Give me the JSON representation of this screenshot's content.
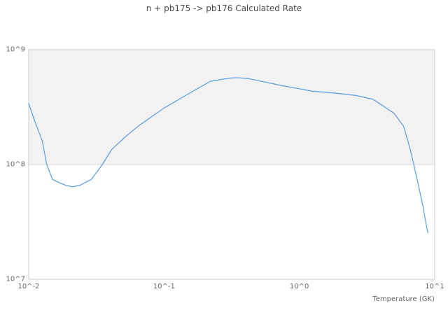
{
  "chart_data": {
    "type": "line",
    "title": "n + pb175 -> pb176 Calculated Rate",
    "xlabel": "Temperature (GK)",
    "ylabel": "",
    "x_scale": "log",
    "y_scale": "log",
    "xlim": [
      0.01,
      10
    ],
    "ylim": [
      10000000,
      1000000000
    ],
    "x_tick_values": [
      0.01,
      0.1,
      1,
      10
    ],
    "x_tick_labels": [
      "10^-2",
      "10^-1",
      "10^0",
      "10^1"
    ],
    "y_tick_values": [
      10000000,
      100000000,
      1000000000
    ],
    "y_tick_labels": [
      "10^7",
      "10^8",
      "10^9"
    ],
    "grid": "horizontal-only",
    "legend": "none",
    "plot_bands": [
      {
        "from": 100000000,
        "to": 1000000000,
        "color": "#f2f2f2"
      }
    ],
    "series": [
      {
        "name": "Calculated Rate",
        "color": "#64a2e2",
        "points": [
          [
            0.01,
            340000000
          ],
          [
            0.011,
            245000000
          ],
          [
            0.0126,
            160000000
          ],
          [
            0.0136,
            100000000
          ],
          [
            0.015,
            74000000
          ],
          [
            0.017,
            69000000
          ],
          [
            0.019,
            65500000
          ],
          [
            0.021,
            64000000
          ],
          [
            0.024,
            66000000
          ],
          [
            0.029,
            74000000
          ],
          [
            0.035,
            100000000
          ],
          [
            0.041,
            135000000
          ],
          [
            0.052,
            175000000
          ],
          [
            0.066,
            220000000
          ],
          [
            0.1,
            310000000
          ],
          [
            0.15,
            410000000
          ],
          [
            0.22,
            530000000
          ],
          [
            0.3,
            565000000
          ],
          [
            0.35,
            570000000
          ],
          [
            0.42,
            560000000
          ],
          [
            0.57,
            520000000
          ],
          [
            0.72,
            490000000
          ],
          [
            0.92,
            465000000
          ],
          [
            1.25,
            435000000
          ],
          [
            1.8,
            420000000
          ],
          [
            2.6,
            400000000
          ],
          [
            3.5,
            370000000
          ],
          [
            5.0,
            280000000
          ],
          [
            5.9,
            215000000
          ],
          [
            6.6,
            135000000
          ],
          [
            7.0,
            100000000
          ],
          [
            7.6,
            65000000
          ],
          [
            8.2,
            43000000
          ],
          [
            8.7,
            29000000
          ],
          [
            8.9,
            25500000
          ]
        ]
      }
    ],
    "colors": {
      "line": "#64a2e2",
      "plot_band": "#f2f2f2",
      "gridline": "#d9d9d9",
      "plot_border": "#cccccc",
      "title_text": "#4a4a4a",
      "tick_text": "#666666"
    }
  }
}
